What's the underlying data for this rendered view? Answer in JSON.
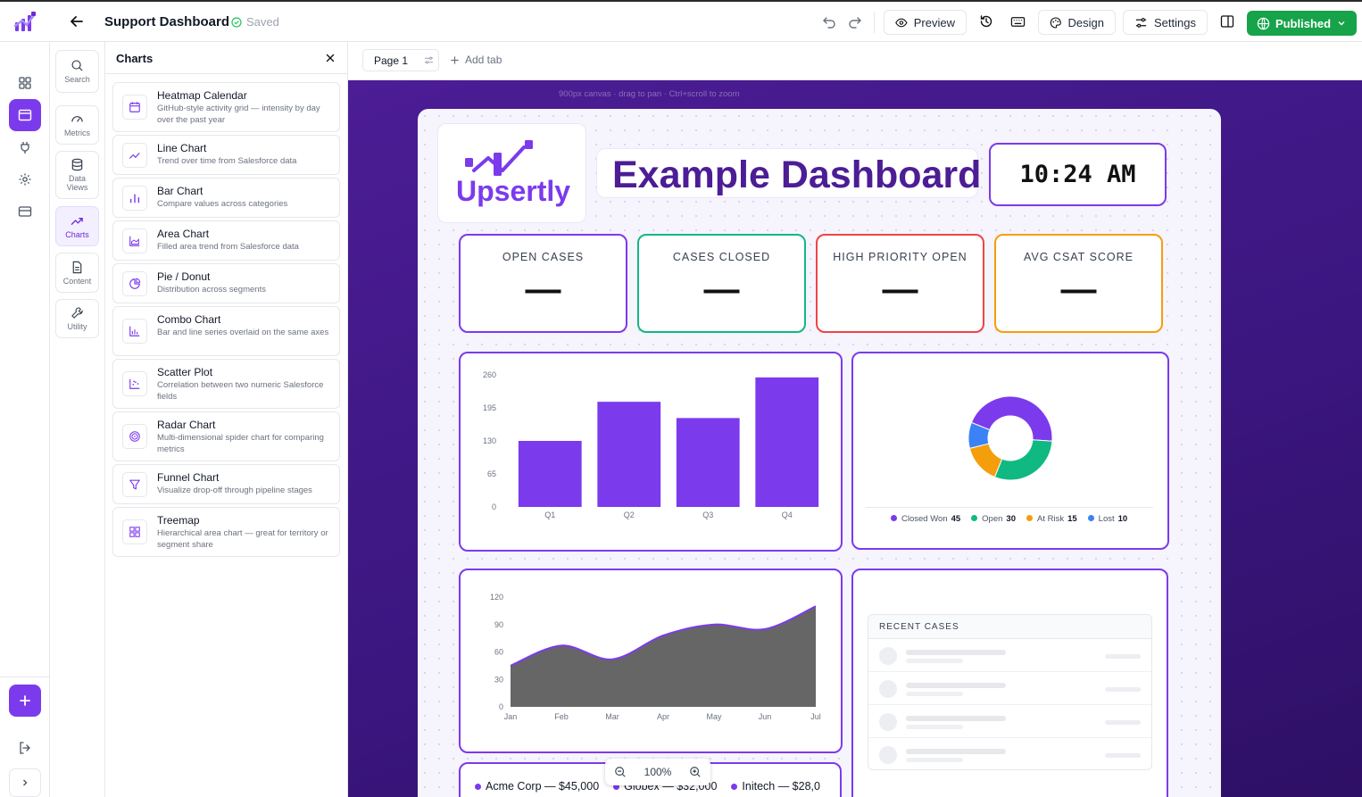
{
  "header": {
    "title": "Support Dashboard",
    "status": "Saved",
    "preview_label": "Preview",
    "design_label": "Design",
    "settings_label": "Settings",
    "publish_label": "Published"
  },
  "rail": {
    "items": [
      "grid-icon",
      "layout-icon",
      "plug-icon",
      "gear-icon",
      "card-icon"
    ],
    "active": "layout-icon"
  },
  "categories": [
    {
      "label": "Search",
      "icon": "search-icon"
    },
    {
      "label": "Metrics",
      "icon": "gauge-icon"
    },
    {
      "label": "Data Views",
      "icon": "database-icon"
    },
    {
      "label": "Charts",
      "icon": "trend-icon",
      "active": true
    },
    {
      "label": "Content",
      "icon": "document-icon"
    },
    {
      "label": "Utility",
      "icon": "wrench-icon"
    }
  ],
  "panel": {
    "title": "Charts",
    "items": [
      {
        "name": "Heatmap Calendar",
        "desc": "GitHub-style activity grid — intensity by day over the past year",
        "icon": "calendar-icon"
      },
      {
        "name": "Line Chart",
        "desc": "Trend over time from Salesforce data",
        "icon": "line-chart-icon"
      },
      {
        "name": "Bar Chart",
        "desc": "Compare values across categories",
        "icon": "bar-chart-icon"
      },
      {
        "name": "Area Chart",
        "desc": "Filled area trend from Salesforce data",
        "icon": "area-chart-icon"
      },
      {
        "name": "Pie / Donut",
        "desc": "Distribution across segments",
        "icon": "pie-chart-icon"
      },
      {
        "name": "Combo Chart",
        "desc": "Bar and line series overlaid on the same axes",
        "icon": "combo-chart-icon"
      },
      {
        "name": "Scatter Plot",
        "desc": "Correlation between two numeric Salesforce fields",
        "icon": "scatter-icon"
      },
      {
        "name": "Radar Chart",
        "desc": "Multi-dimensional spider chart for comparing metrics",
        "icon": "radar-icon"
      },
      {
        "name": "Funnel Chart",
        "desc": "Visualize drop-off through pipeline stages",
        "icon": "funnel-icon"
      },
      {
        "name": "Treemap",
        "desc": "Hierarchical area chart — great for territory or segment share",
        "icon": "treemap-icon"
      }
    ]
  },
  "tabs": {
    "page_label": "Page 1",
    "add_label": "Add tab"
  },
  "canvas": {
    "hint": "900px canvas · drag to pan · Ctrl+scroll to zoom",
    "zoom": "100%"
  },
  "dashboard": {
    "brand": "Upsertly",
    "title": "Example Dashboard",
    "clock": "10:24 AM",
    "kpis": [
      {
        "label": "OPEN CASES",
        "value": "—",
        "color": "#7c3aed"
      },
      {
        "label": "CASES CLOSED",
        "value": "—",
        "color": "#10b981"
      },
      {
        "label": "HIGH PRIORITY OPEN",
        "value": "—",
        "color": "#ef4444"
      },
      {
        "label": "AVG CSAT SCORE",
        "value": "—",
        "color": "#f59e0b"
      }
    ],
    "recent_cases_title": "RECENT CASES",
    "bottom_items": [
      "Acme Corp — $45,000",
      "Globex — $32,000",
      "Initech — $28,0"
    ]
  },
  "chart_data": [
    {
      "type": "bar",
      "categories": [
        "Q1",
        "Q2",
        "Q3",
        "Q4"
      ],
      "values": [
        130,
        207,
        175,
        255
      ],
      "yticks": [
        0,
        65,
        130,
        195,
        260
      ],
      "ylim": [
        0,
        260
      ],
      "color": "#7c3aed"
    },
    {
      "type": "pie",
      "donut": true,
      "labels": [
        "Closed Won",
        "Open",
        "At Risk",
        "Lost"
      ],
      "values": [
        45,
        30,
        15,
        10
      ],
      "colors": [
        "#7c3aed",
        "#10b981",
        "#f59e0b",
        "#3b82f6"
      ]
    },
    {
      "type": "area",
      "x": [
        "Jan",
        "Feb",
        "Mar",
        "Apr",
        "May",
        "Jun",
        "Jul"
      ],
      "values": [
        45,
        67,
        52,
        78,
        90,
        85,
        110
      ],
      "yticks": [
        0,
        30,
        60,
        90,
        120
      ],
      "ylim": [
        0,
        120
      ],
      "fill": "#666666",
      "stroke": "#7c3aed"
    }
  ]
}
